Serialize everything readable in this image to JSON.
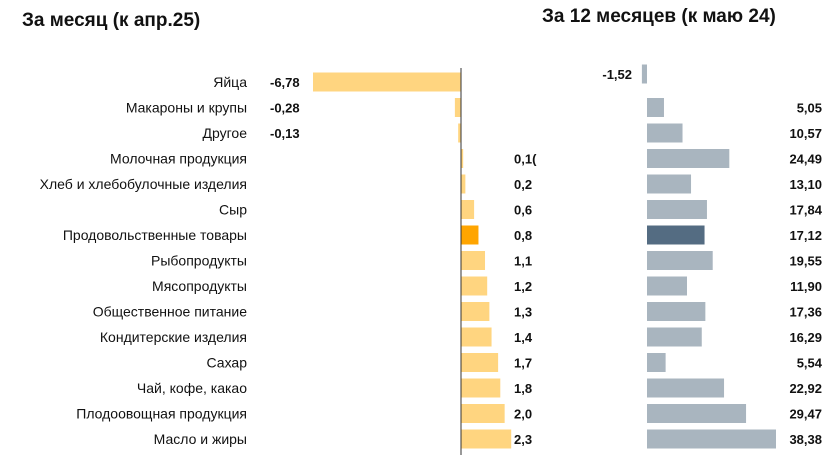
{
  "chart_data": [
    {
      "type": "bar",
      "orientation": "horizontal",
      "title": "За месяц (к апр.25)",
      "categories": [
        "Яйца",
        "Макароны и крупы",
        "Другое",
        "Молочная продукция",
        "Хлеб и хлебобулочные изделия",
        "Сыр",
        "Продовольственные товары",
        "Рыбопродукты",
        "Мясопродукты",
        "Общественное питание",
        "Кондитерские изделия",
        "Сахар",
        "Чай, кофе, какао",
        "Плодоовощная продукция",
        "Масло и жиры"
      ],
      "values": [
        -6.78,
        -0.28,
        -0.13,
        0.1,
        0.2,
        0.6,
        0.8,
        1.1,
        1.2,
        1.3,
        1.4,
        1.7,
        1.8,
        2.0,
        2.3
      ],
      "value_labels": [
        "-6,78",
        "-0,28",
        "-0,13",
        "0,1(",
        "0,2",
        "0,6",
        "0,8",
        "1,1",
        "1,2",
        "1,3",
        "1,4",
        "1,7",
        "1,8",
        "2,0",
        "2,3"
      ],
      "highlight_index": 6,
      "colors": {
        "bar": "#FFD580",
        "highlight": "#FFA500",
        "axis": "#333333"
      }
    },
    {
      "type": "bar",
      "orientation": "horizontal",
      "title": "За 12 месяцев (к маю 24)",
      "categories": [
        "Яйца",
        "Макароны и крупы",
        "Другое",
        "Молочная продукция",
        "Хлеб и хлебобулочные изделия",
        "Сыр",
        "Продовольственные товары",
        "Рыбопродукты",
        "Мясопродукты",
        "Общественное питание",
        "Кондитерские изделия",
        "Сахар",
        "Чай, кофе, какао",
        "Плодоовощная продукция",
        "Масло и жиры"
      ],
      "values": [
        -1.52,
        5.05,
        10.57,
        24.49,
        13.1,
        17.84,
        17.12,
        19.55,
        11.9,
        17.36,
        16.29,
        5.54,
        22.92,
        29.47,
        38.38
      ],
      "value_labels": [
        "-1,52",
        "5,05",
        "10,57",
        "24,49",
        "13,10",
        "17,84",
        "17,12",
        "19,55",
        "11,90",
        "17,36",
        "16,29",
        "5,54",
        "22,92",
        "29,47",
        "38,38"
      ],
      "highlight_index": 6,
      "colors": {
        "bar": "#A9B5BF",
        "highlight": "#546C82"
      }
    }
  ]
}
